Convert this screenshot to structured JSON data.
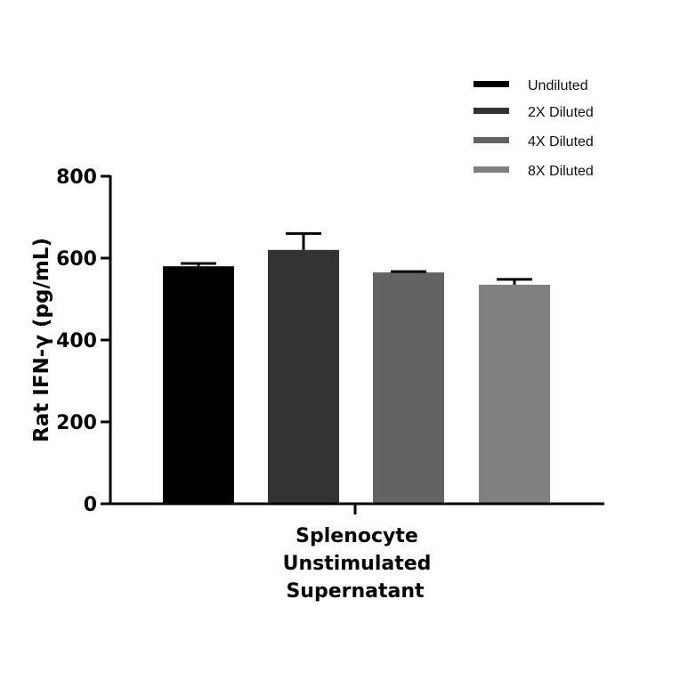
{
  "chart_data": {
    "type": "bar",
    "title": "",
    "xlabel": "",
    "ylabel": "Rat IFN-γ (pg/mL)",
    "ylim": [
      0,
      800
    ],
    "yticks": [
      0,
      200,
      400,
      600,
      800
    ],
    "grid": false,
    "legend_position": "top-right",
    "categories": [
      "Splenocyte Unstimulated Supernatant"
    ],
    "category_label_lines": [
      "Splenocyte",
      "Unstimulated",
      "Supernatant"
    ],
    "series": [
      {
        "name": "Undiluted",
        "color": "#000000",
        "values": [
          580
        ],
        "error": [
          7
        ]
      },
      {
        "name": "2X Diluted",
        "color": "#333333",
        "values": [
          620
        ],
        "error": [
          40
        ]
      },
      {
        "name": "4X Diluted",
        "color": "#636363",
        "values": [
          565
        ],
        "error": [
          2
        ]
      },
      {
        "name": "8X Diluted",
        "color": "#808080",
        "values": [
          535
        ],
        "error": [
          13
        ]
      }
    ]
  }
}
